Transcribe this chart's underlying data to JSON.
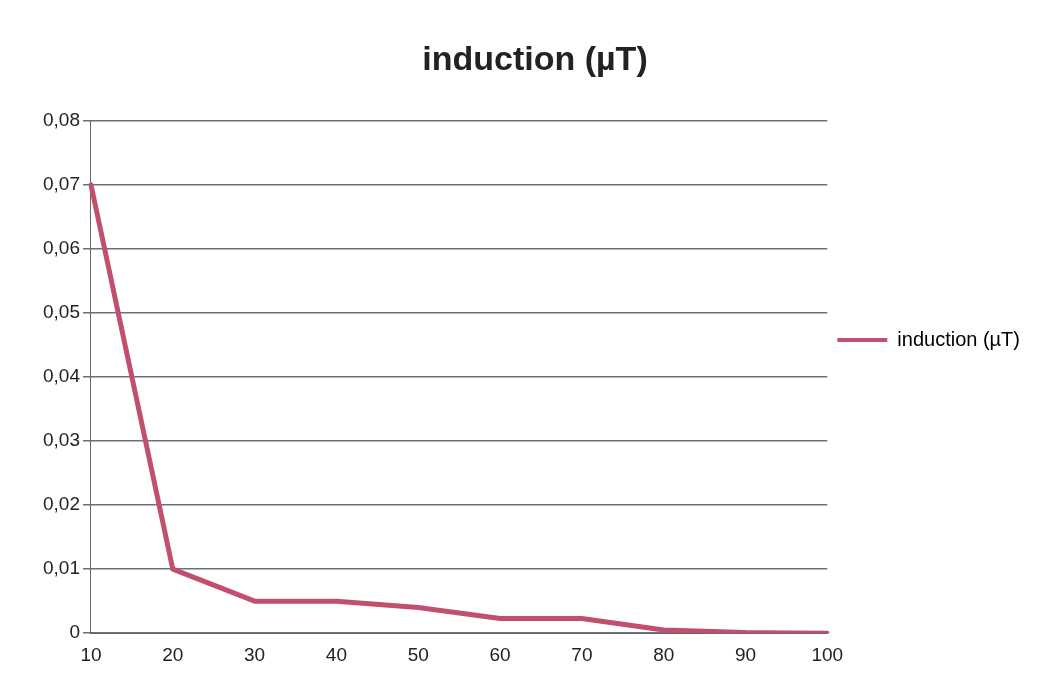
{
  "chart_data": {
    "type": "line",
    "title": "induction (µT)",
    "categories": [
      "10",
      "20",
      "30",
      "40",
      "50",
      "60",
      "70",
      "80",
      "90",
      "100"
    ],
    "series": [
      {
        "name": "induction (µT)",
        "color": "#c0506e",
        "values": [
          0.07,
          0.01,
          0.005,
          0.005,
          0.004,
          0.0023,
          0.0023,
          0.0005,
          0.0001,
          0
        ]
      }
    ],
    "ylim": [
      0,
      0.08
    ],
    "yticks": [
      {
        "value": 0,
        "label": "0"
      },
      {
        "value": 0.01,
        "label": "0,01"
      },
      {
        "value": 0.02,
        "label": "0,02"
      },
      {
        "value": 0.03,
        "label": "0,03"
      },
      {
        "value": 0.04,
        "label": "0,04"
      },
      {
        "value": 0.05,
        "label": "0,05"
      },
      {
        "value": 0.06,
        "label": "0,06"
      },
      {
        "value": 0.07,
        "label": "0,07"
      },
      {
        "value": 0.08,
        "label": "0,08"
      }
    ],
    "grid": "y",
    "legend": "right",
    "marker": "none",
    "line_style": "solid"
  }
}
